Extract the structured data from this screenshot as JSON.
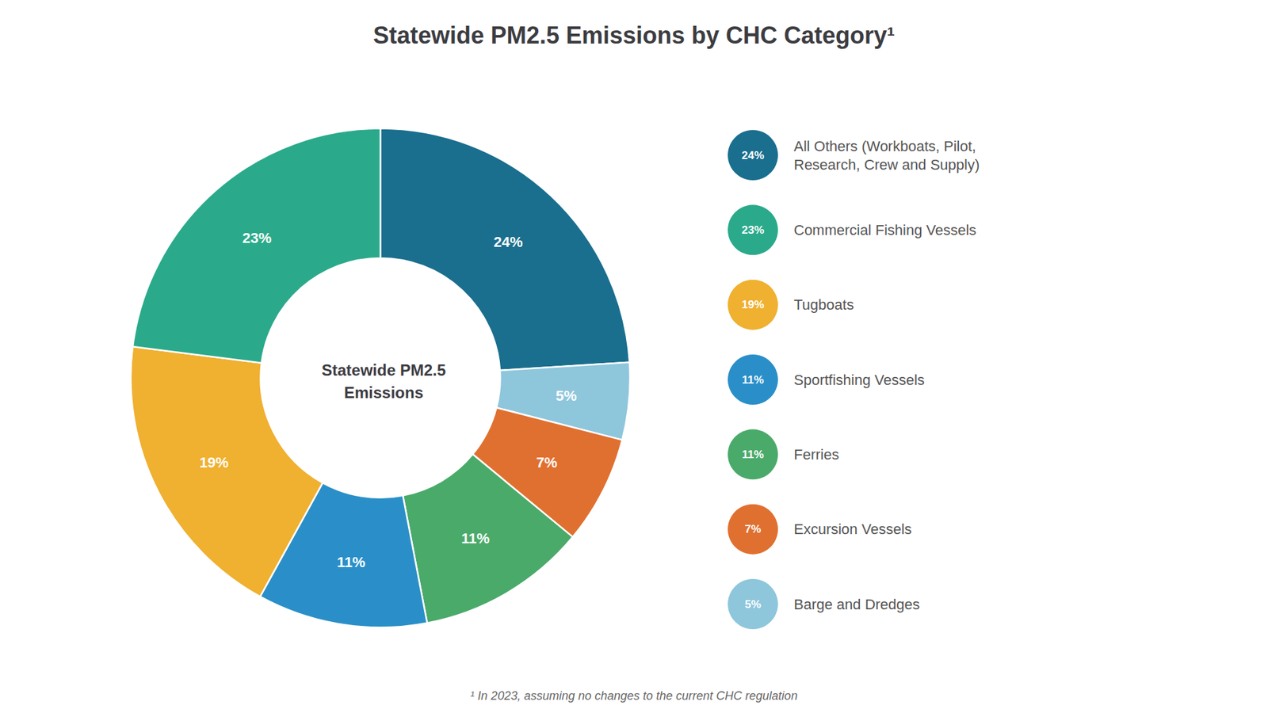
{
  "chart_data": {
    "type": "pie",
    "title": "Statewide PM2.5 Emissions by CHC Category¹",
    "center_text": "Statewide PM2.5\nEmissions",
    "footnote": "¹ In 2023, assuming no changes to the current CHC regulation",
    "categories": [
      "All Others (Workboats, Pilot,\nResearch, Crew and Supply)",
      "Barge and Dredges",
      "Excursion Vessels",
      "Ferries",
      "Sportfishing Vessels",
      "Tugboats",
      "Commercial Fishing Vessels"
    ],
    "values": [
      24,
      5,
      7,
      11,
      11,
      19,
      23
    ],
    "value_labels": [
      "24%",
      "5%",
      "7%",
      "11%",
      "11%",
      "19%",
      "23%"
    ],
    "colors": [
      "#1a6e8e",
      "#8ec6dc",
      "#e07030",
      "#4aaa6a",
      "#2a8fc8",
      "#f0b030",
      "#2aaa8a"
    ],
    "data_labels": true,
    "legend": "right",
    "legend_entries": [
      "All Others (Workboats, Pilot,\nResearch, Crew and Supply)",
      "Commercial Fishing Vessels",
      "Tugboats",
      "Sportfishing Vessels",
      "Ferries",
      "Excursion Vessels",
      "Barge and Dredges"
    ]
  }
}
